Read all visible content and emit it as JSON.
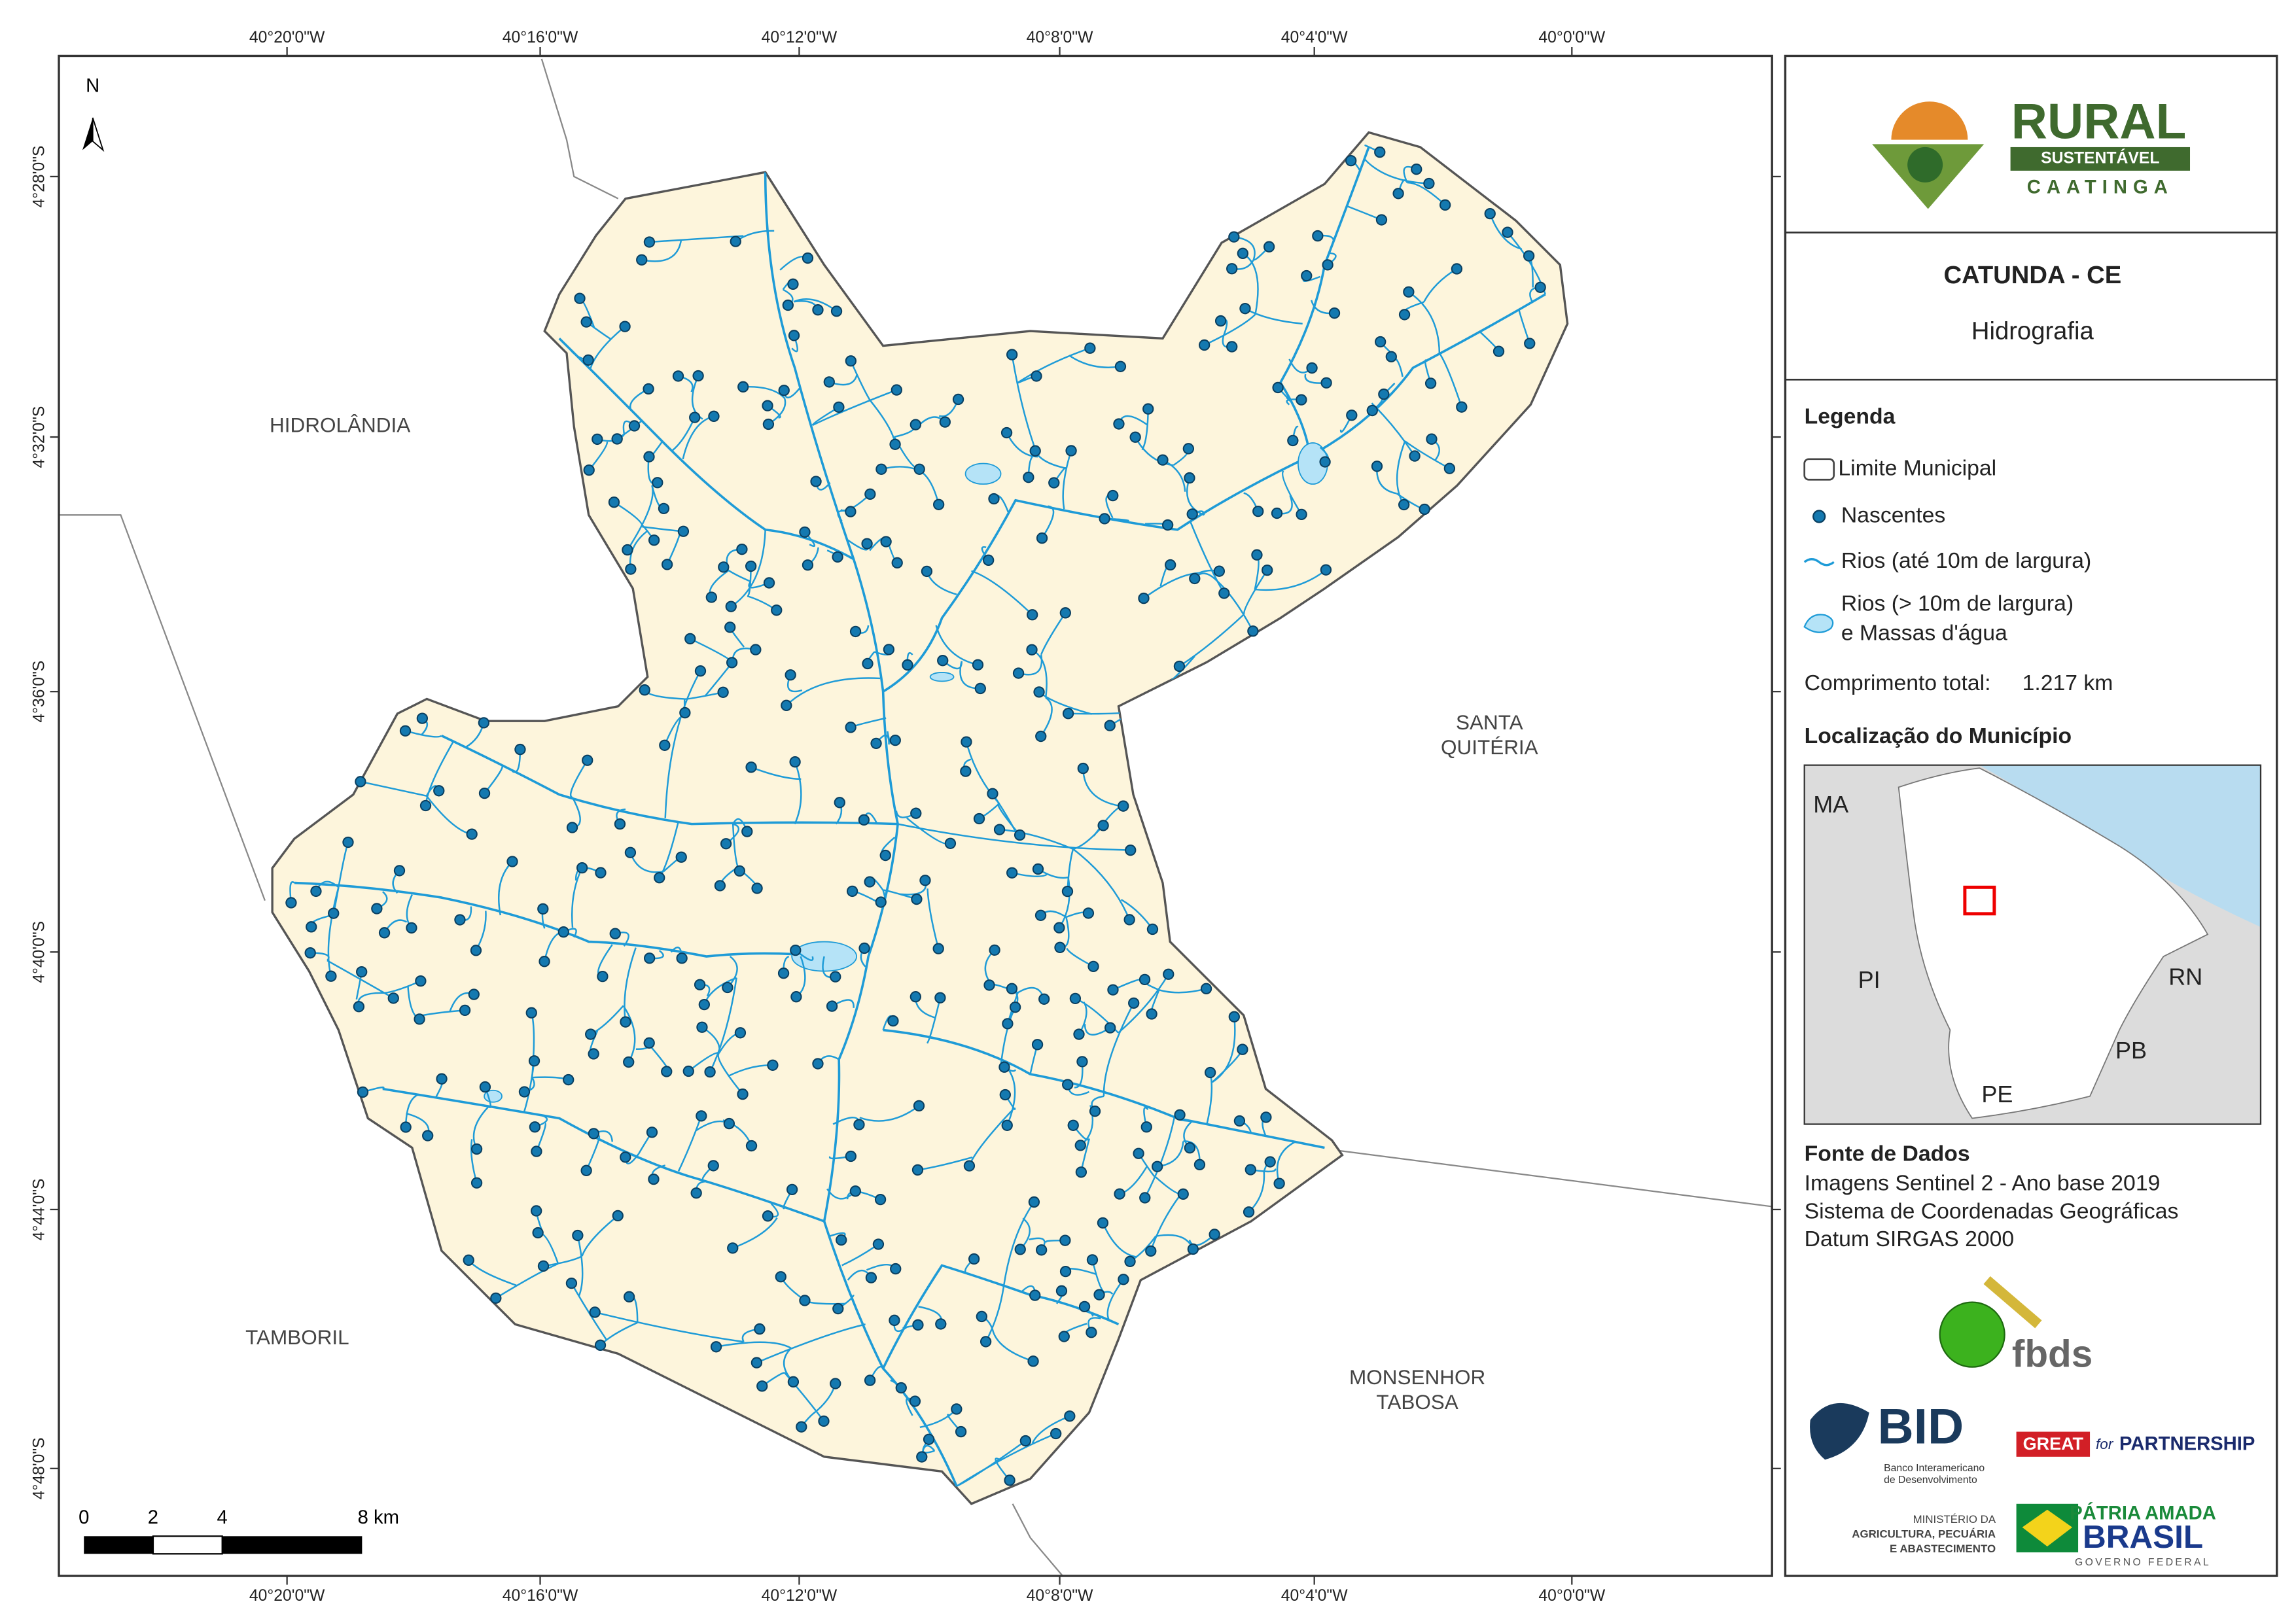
{
  "logo": {
    "name": "RURAL",
    "tagline": "SUSTENTÁVEL",
    "region": "CAATINGA"
  },
  "header": {
    "title": "CATUNDA - CE",
    "subtitle": "Hidrografia"
  },
  "legend": {
    "title": "Legenda",
    "items": [
      "Limite Municipal",
      "Nascentes",
      "Rios (até 10m de largura)",
      "Rios (> 10m de largura)",
      "e Massas d'água"
    ],
    "total_label": "Comprimento total:",
    "total_value": "1.217 km"
  },
  "location": {
    "title": "Localização do Município",
    "labels": [
      "MA",
      "PI",
      "RN",
      "PB",
      "PE"
    ]
  },
  "sources": {
    "title": "Fonte de Dados",
    "lines": [
      "Imagens Sentinel 2 - Ano base 2019",
      "Sistema de Coordenadas Geográficas",
      "Datum SIRGAS 2000"
    ]
  },
  "partners": {
    "fbds": "fbds",
    "bid": "BID",
    "bid_name": [
      "Banco Interamericano",
      "de Desenvolvimento"
    ],
    "great": "GREAT",
    "for": "for",
    "partnership": "PARTNERSHIP",
    "ministry": [
      "MINISTÉRIO DA",
      "AGRICULTURA, PECUÁRIA",
      "E ABASTECIMENTO"
    ],
    "brasil_top": "PÁTRIA AMADA",
    "brasil": "BRASIL",
    "brasil_gov": "GOVERNO FEDERAL"
  },
  "map": {
    "north": "N",
    "x_labels": [
      "40°20'0\"W",
      "40°16'0\"W",
      "40°12'0\"W",
      "40°8'0\"W",
      "40°4'0\"W",
      "40°0'0\"W"
    ],
    "y_labels": [
      "4°28'0\"S",
      "4°32'0\"S",
      "4°36'0\"S",
      "4°40'0\"S",
      "4°44'0\"S",
      "4°48'0\"S"
    ],
    "places": [
      [
        "HIDROLÂNDIA"
      ],
      [
        "SANTA",
        "QUITÉRIA"
      ],
      [
        "TAMBORIL"
      ],
      [
        "MONSENHOR",
        "TABOSA"
      ]
    ],
    "scale_labels": [
      "0",
      "2",
      "4",
      "8 km"
    ]
  }
}
